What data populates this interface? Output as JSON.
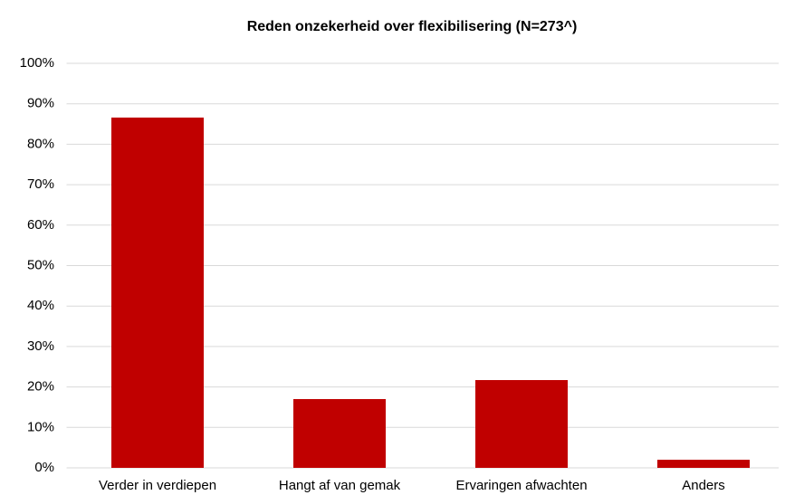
{
  "chart_data": {
    "type": "bar",
    "title": "Reden onzekerheid over flexibilisering (N=273^)",
    "categories": [
      "Verder in verdiepen",
      "Hangt af van gemak",
      "Ervaringen afwachten",
      "Anders"
    ],
    "values": [
      86.6,
      17.0,
      21.7,
      2.0
    ],
    "color": "#c00000",
    "ylim": [
      0,
      100
    ],
    "yticks": [
      {
        "value": 0,
        "label": "0%"
      },
      {
        "value": 10,
        "label": "10%"
      },
      {
        "value": 20,
        "label": "20%"
      },
      {
        "value": 30,
        "label": "30%"
      },
      {
        "value": 40,
        "label": "40%"
      },
      {
        "value": 50,
        "label": "50%"
      },
      {
        "value": 60,
        "label": "60%"
      },
      {
        "value": 70,
        "label": "70%"
      },
      {
        "value": 80,
        "label": "80%"
      },
      {
        "value": 90,
        "label": "90%"
      },
      {
        "value": 100,
        "label": "100%"
      }
    ],
    "grid": true
  }
}
